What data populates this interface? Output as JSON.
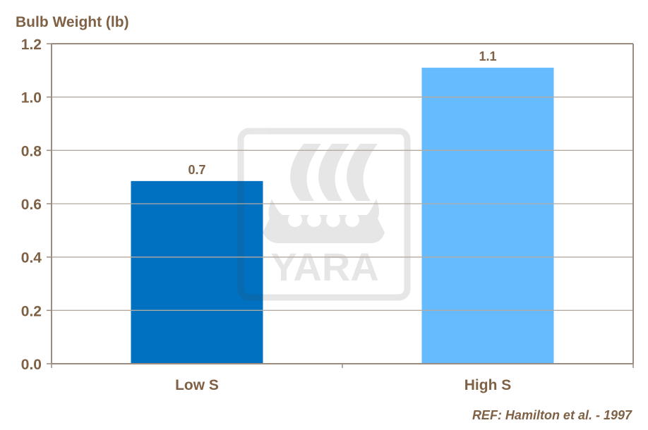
{
  "chart_data": {
    "type": "bar",
    "title": "",
    "ylabel": "Bulb Weight (lb)",
    "xlabel": "",
    "categories": [
      "Low S",
      "High S"
    ],
    "values": [
      0.685,
      1.11
    ],
    "data_labels": [
      "0.7",
      "1.1"
    ],
    "bar_colors": [
      "#0070c0",
      "#66bbff"
    ],
    "ylim": [
      0,
      1.2
    ],
    "yticks": [
      "0.0",
      "0.2",
      "0.4",
      "0.6",
      "0.8",
      "1.0",
      "1.2"
    ],
    "grid": true,
    "legend": "none"
  },
  "colors": {
    "text": "#7f6145",
    "axis": "#9a8c80",
    "grid": "#b3aaa2"
  },
  "watermark": {
    "text": "YARA"
  },
  "footer": {
    "reference": "REF: Hamilton et al. - 1997"
  }
}
